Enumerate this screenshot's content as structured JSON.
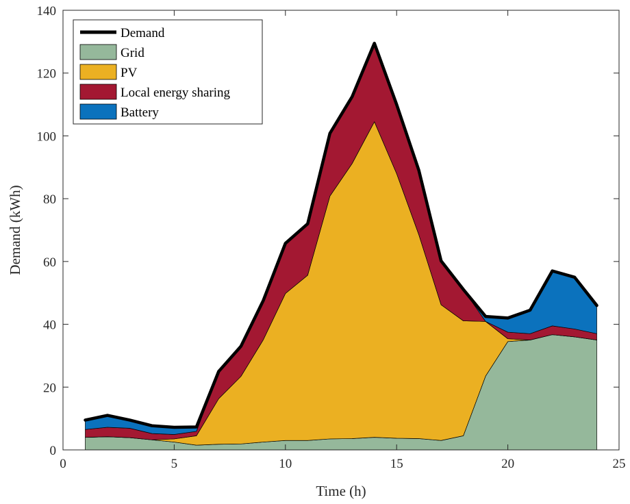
{
  "chart_data": {
    "type": "area",
    "xlabel": "Time (h)",
    "ylabel": "Demand (kWh)",
    "xlim": [
      0,
      25
    ],
    "ylim": [
      0,
      140
    ],
    "xticks": [
      0,
      5,
      10,
      15,
      20,
      25
    ],
    "yticks": [
      0,
      20,
      40,
      60,
      80,
      100,
      120,
      140
    ],
    "grid": false,
    "legend_position": "top-left",
    "x": [
      1,
      2,
      3,
      4,
      5,
      6,
      7,
      8,
      9,
      10,
      11,
      12,
      13,
      14,
      15,
      16,
      17,
      18,
      19,
      20,
      21,
      22,
      23,
      24
    ],
    "series": [
      {
        "name": "Grid",
        "color": "#95b89b",
        "values": [
          4,
          4.2,
          3.9,
          3.2,
          2.5,
          1.5,
          1.8,
          1.9,
          2.5,
          3.0,
          3.0,
          3.5,
          3.6,
          4.0,
          3.7,
          3.6,
          3.0,
          4.5,
          23.5,
          34.5,
          35.0,
          36.7,
          36.0,
          35.0
        ]
      },
      {
        "name": "PV",
        "color": "#ebb022",
        "values": [
          0,
          0,
          0,
          0,
          1.0,
          3.0,
          14.5,
          21.5,
          32.5,
          46.8,
          52.6,
          77.3,
          87.6,
          100.5,
          84.3,
          64.9,
          43.2,
          36.6,
          17.4,
          0.9,
          0,
          0,
          0,
          0
        ]
      },
      {
        "name": "Local energy sharing",
        "color": "#a31832",
        "values": [
          2.5,
          3.0,
          3.0,
          2.0,
          1.4,
          1.4,
          8.7,
          9.6,
          12.5,
          16.0,
          16.4,
          20.0,
          21.3,
          25.0,
          22.0,
          20.5,
          14.0,
          10.0,
          0,
          2.1,
          2.0,
          2.8,
          2.5,
          2.0
        ]
      },
      {
        "name": "Battery",
        "color": "#0b72bd",
        "values": [
          3.0,
          3.8,
          2.6,
          2.5,
          2.3,
          1.4,
          0,
          0,
          0,
          0,
          0,
          0,
          0,
          0,
          0,
          0,
          0,
          0,
          1.6,
          4.5,
          7.5,
          17.5,
          16.5,
          9.0
        ]
      }
    ],
    "demand": {
      "name": "Demand",
      "color": "#000000",
      "values": [
        9.5,
        11.0,
        9.5,
        7.7,
        7.2,
        7.3,
        25.0,
        33.0,
        47.5,
        65.8,
        72.0,
        100.8,
        112.5,
        129.5,
        110.0,
        89.0,
        60.2,
        51.1,
        42.5,
        42.0,
        44.5,
        57.0,
        55.0,
        46.0
      ]
    }
  }
}
